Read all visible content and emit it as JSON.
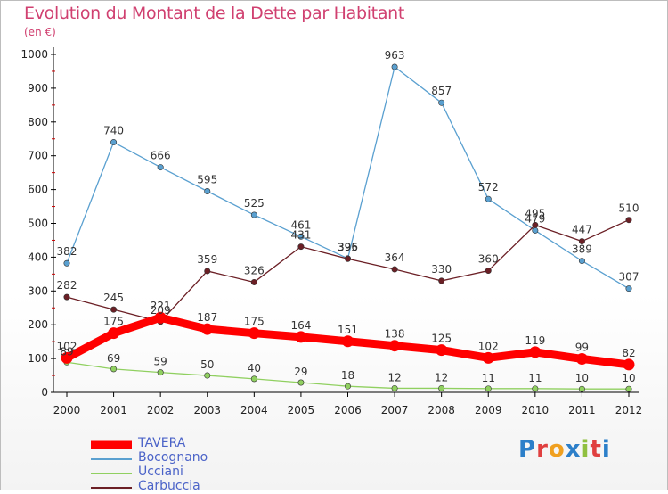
{
  "title": "Evolution du Montant de la Dette par Habitant",
  "unit": "(en €)",
  "logo": "Proxiti",
  "chart_data": {
    "type": "line",
    "x": [
      "2000",
      "2001",
      "2002",
      "2003",
      "2004",
      "2005",
      "2006",
      "2007",
      "2008",
      "2009",
      "2010",
      "2011",
      "2012"
    ],
    "yticks": [
      0,
      100,
      200,
      300,
      400,
      500,
      600,
      700,
      800,
      900,
      1000
    ],
    "ylim": [
      0,
      1000
    ],
    "grid": false,
    "legend_position": "bottom-left",
    "series": [
      {
        "name": "TAVERA",
        "color": "#ff0000",
        "values": [
          102,
          175,
          221,
          187,
          175,
          164,
          151,
          138,
          125,
          102,
          119,
          99,
          82
        ]
      },
      {
        "name": "Bocognano",
        "color": "#5aa0d0",
        "values": [
          382,
          740,
          666,
          595,
          525,
          461,
          396,
          963,
          857,
          572,
          479,
          389,
          307
        ]
      },
      {
        "name": "Ucciani",
        "color": "#90d060",
        "values": [
          89,
          69,
          59,
          50,
          40,
          29,
          18,
          12,
          12,
          11,
          11,
          10,
          10
        ]
      },
      {
        "name": "Carbuccia",
        "color": "#6b1f25",
        "values": [
          282,
          245,
          209,
          359,
          326,
          431,
          395,
          364,
          330,
          360,
          495,
          447,
          510
        ]
      }
    ]
  }
}
